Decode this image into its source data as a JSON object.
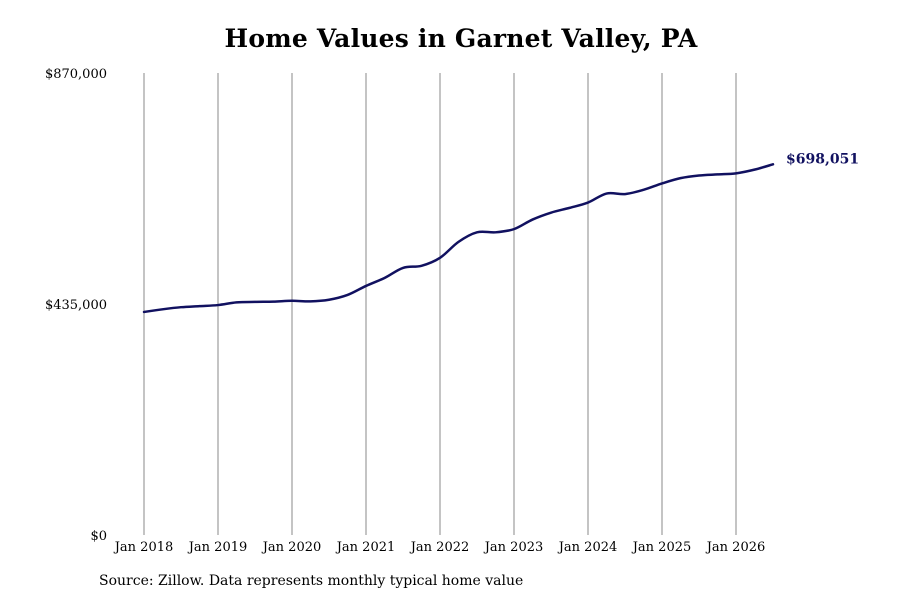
{
  "chart_data": {
    "type": "line",
    "title": "Home Values in Garnet Valley, PA",
    "xlabel": "",
    "ylabel": "",
    "grid": {
      "vertical": true,
      "horizontal": false
    },
    "xlim": [
      "2018-01",
      "2026-07"
    ],
    "ylim": [
      0,
      870000
    ],
    "x_ticks": [
      "2018-01",
      "2019-01",
      "2020-01",
      "2021-01",
      "2022-01",
      "2023-01",
      "2024-01",
      "2025-01",
      "2026-01"
    ],
    "x_tick_labels": [
      "Jan 2018",
      "Jan 2019",
      "Jan 2020",
      "Jan 2021",
      "Jan 2022",
      "Jan 2023",
      "Jan 2024",
      "Jan 2025",
      "Jan 2026"
    ],
    "y_ticks": [
      0,
      435000,
      870000
    ],
    "y_tick_labels": [
      "$0",
      "$435,000",
      "$870,000"
    ],
    "line_color": "#111160",
    "series": [
      {
        "x": [
          "2018-01",
          "2018-04",
          "2018-07",
          "2018-10",
          "2019-01",
          "2019-04",
          "2019-07",
          "2019-10",
          "2020-01",
          "2020-04",
          "2020-07",
          "2020-10",
          "2021-01",
          "2021-04",
          "2021-07",
          "2021-10",
          "2022-01",
          "2022-04",
          "2022-07",
          "2022-10",
          "2023-01",
          "2023-04",
          "2023-07",
          "2023-10",
          "2024-01",
          "2024-04",
          "2024-07",
          "2024-10",
          "2025-01",
          "2025-04",
          "2025-07",
          "2025-10",
          "2026-01",
          "2026-04",
          "2026-07"
        ],
        "values": [
          420000,
          425000,
          429000,
          431000,
          433000,
          438000,
          439000,
          439500,
          441000,
          440000,
          443000,
          452000,
          469000,
          484000,
          503000,
          507000,
          522000,
          552000,
          570000,
          570000,
          576000,
          594000,
          607000,
          616000,
          626000,
          643000,
          642000,
          650000,
          662000,
          672000,
          677000,
          679000,
          681000,
          688000,
          698051
        ]
      }
    ],
    "end_label": "$698,051",
    "source": "Source: Zillow. Data represents monthly typical home value"
  }
}
